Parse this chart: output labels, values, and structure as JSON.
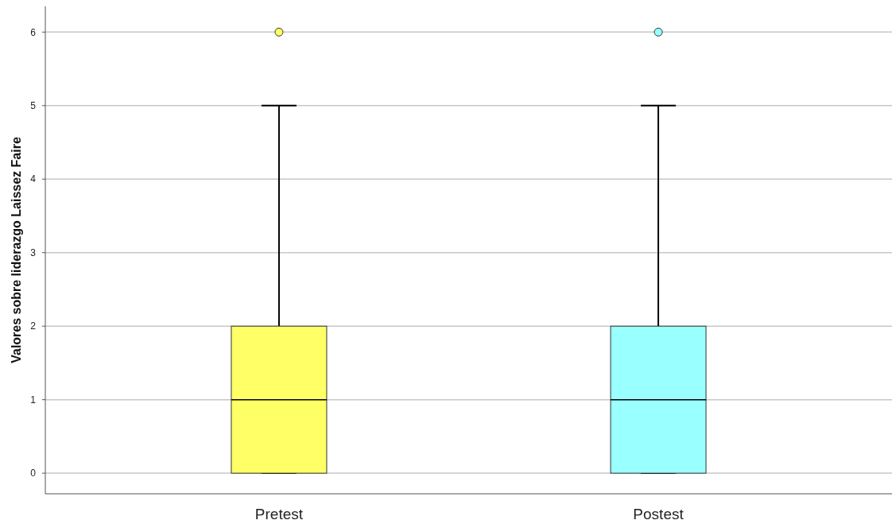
{
  "chart_data": {
    "type": "box",
    "ylabel": "Valores sobre liderazgo Laissez Faire",
    "categories": [
      "Pretest",
      "Postest"
    ],
    "colors": [
      "#ffff66",
      "#99ffff"
    ],
    "boxes": [
      {
        "low": 0,
        "q1": 0,
        "median": 1,
        "q3": 2,
        "high": 5,
        "outliers": [
          6
        ]
      },
      {
        "low": 0,
        "q1": 0,
        "median": 1,
        "q3": 2,
        "high": 5,
        "outliers": [
          6
        ]
      }
    ],
    "ylim": [
      -0.28,
      6.35
    ],
    "yticks": [
      0,
      1,
      2,
      3,
      4,
      5,
      6
    ],
    "grid": "y"
  }
}
